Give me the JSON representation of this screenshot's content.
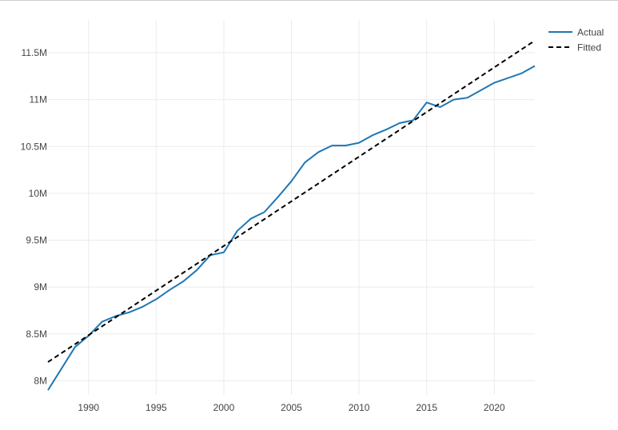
{
  "chart_data": {
    "type": "line",
    "xlim": [
      1987,
      2023
    ],
    "ylim": [
      7850000,
      11850000
    ],
    "x_ticks": [
      1990,
      1995,
      2000,
      2005,
      2010,
      2015,
      2020
    ],
    "x_tick_labels": [
      "1990",
      "1995",
      "2000",
      "2005",
      "2010",
      "2015",
      "2020"
    ],
    "y_ticks": [
      8000000,
      8500000,
      9000000,
      9500000,
      10000000,
      10500000,
      11000000,
      11500000
    ],
    "y_tick_labels": [
      "8M",
      "8.5M",
      "9M",
      "9.5M",
      "10M",
      "10.5M",
      "11M",
      "11.5M"
    ],
    "grid": true,
    "legend_position": "top-right",
    "series": [
      {
        "name": "Actual",
        "style": "solid",
        "color": "#1f77b4",
        "x": [
          1987,
          1988,
          1989,
          1990,
          1991,
          1992,
          1993,
          1994,
          1995,
          1996,
          1997,
          1998,
          1999,
          2000,
          2001,
          2002,
          2003,
          2004,
          2005,
          2006,
          2007,
          2008,
          2009,
          2010,
          2011,
          2012,
          2013,
          2014,
          2015,
          2016,
          2017,
          2018,
          2019,
          2020,
          2021,
          2022,
          2023
        ],
        "y": [
          7900000,
          8130000,
          8360000,
          8480000,
          8630000,
          8690000,
          8730000,
          8790000,
          8870000,
          8970000,
          9060000,
          9180000,
          9340000,
          9370000,
          9600000,
          9730000,
          9800000,
          9960000,
          10130000,
          10330000,
          10440000,
          10510000,
          10510000,
          10540000,
          10620000,
          10680000,
          10750000,
          10780000,
          10970000,
          10920000,
          11000000,
          11020000,
          11100000,
          11180000,
          11230000,
          11280000,
          11360000
        ]
      },
      {
        "name": "Fitted",
        "style": "dashed",
        "color": "#000000",
        "x": [
          1987,
          2023
        ],
        "y": [
          8200000,
          11630000
        ]
      }
    ]
  }
}
